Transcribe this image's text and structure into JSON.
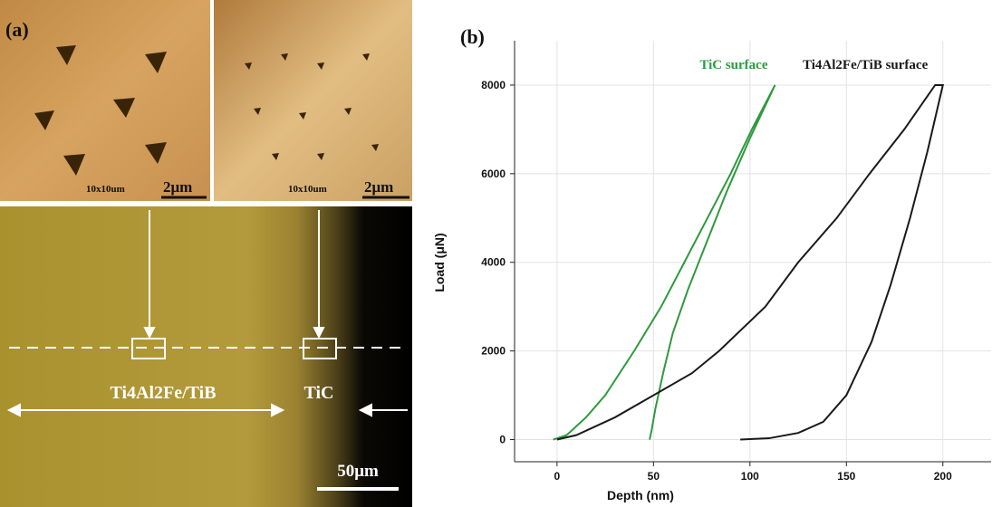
{
  "panel_a": {
    "label": "(a)",
    "image_1_size": "10x10um",
    "image_1_scale": "2μm",
    "image_2_size": "10x10um",
    "image_2_scale": "2μm",
    "region_left": "Ti4Al2Fe/TiB",
    "region_right": "TiC",
    "scale_bar": "50μm"
  },
  "chart_data": {
    "type": "line",
    "panel_label": "(b)",
    "xlabel": "Depth (nm)",
    "ylabel": "Load (μN)",
    "xlim": [
      -22,
      225
    ],
    "ylim": [
      -500,
      9000
    ],
    "xticks": [
      0,
      50,
      100,
      150,
      200
    ],
    "yticks": [
      0,
      2000,
      4000,
      6000,
      8000
    ],
    "grid": true,
    "series": [
      {
        "name": "TiC surface",
        "color": "#2e9a3e",
        "x": [
          -2,
          5,
          15,
          25,
          40,
          54,
          66,
          78,
          90,
          101,
          113,
          100,
          88,
          78,
          68,
          60,
          55,
          51,
          49,
          48
        ],
        "values": [
          0,
          100,
          500,
          1000,
          2000,
          3000,
          4000,
          5000,
          6000,
          7000,
          8000,
          6800,
          5600,
          4500,
          3400,
          2400,
          1500,
          700,
          200,
          0
        ]
      },
      {
        "name": "Ti4Al2Fe/TiB surface",
        "color": "#1a1a1a",
        "x": [
          0,
          10,
          30,
          50,
          70,
          84,
          108,
          125,
          145,
          162,
          180,
          196,
          200,
          192,
          183,
          173,
          163,
          150,
          138,
          125,
          110,
          95
        ],
        "values": [
          0,
          100,
          500,
          1000,
          1500,
          2000,
          3000,
          4000,
          5000,
          6000,
          7000,
          8000,
          8000,
          6500,
          5000,
          3500,
          2200,
          1000,
          400,
          150,
          30,
          0
        ]
      }
    ]
  }
}
